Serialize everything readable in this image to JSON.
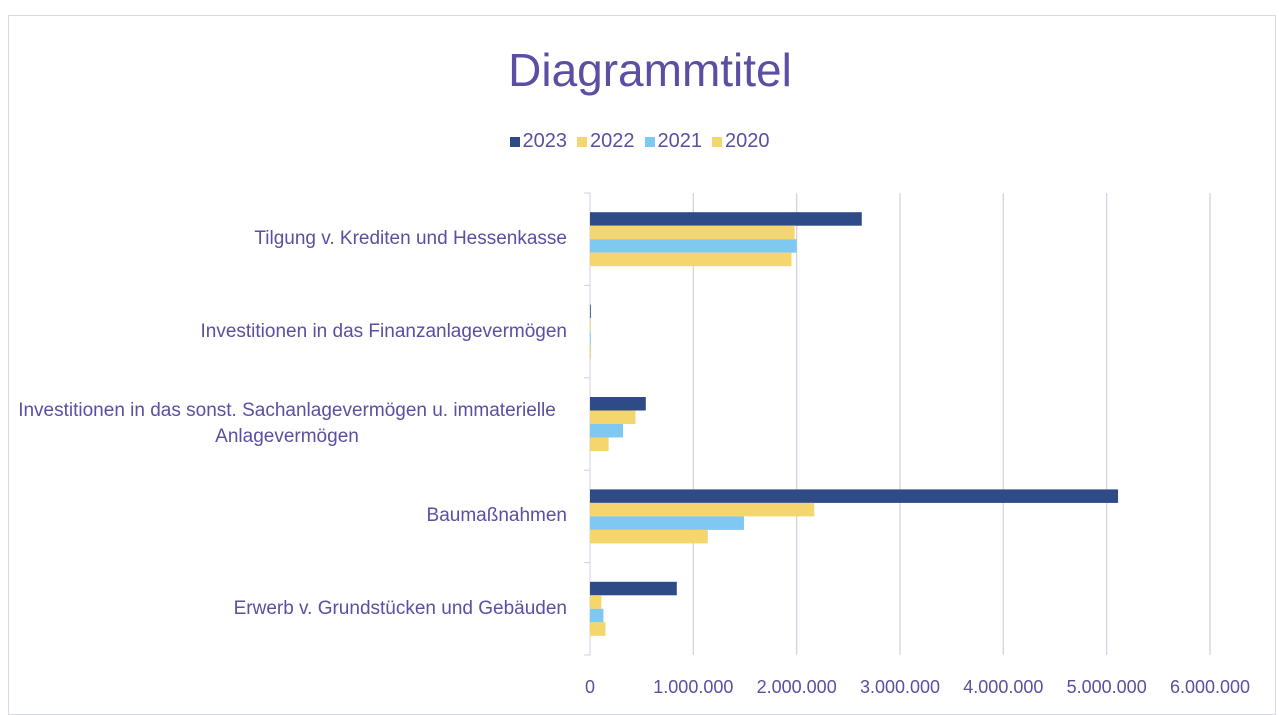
{
  "chart_data": {
    "type": "hbar",
    "title": "Diagrammtitel",
    "categories": [
      "Tilgung v. Krediten und Hessenkasse",
      "Investitionen in das Finanzanlagevermögen",
      "Investitionen in das sonst. Sachanlagevermögen u. immaterielle Anlagevermögen",
      "Baumaßnahmen",
      "Erwerb v. Grundstücken und Gebäuden"
    ],
    "series": [
      {
        "name": "2023",
        "color": "#2e4a87",
        "values": [
          2630000,
          5000,
          540000,
          5110000,
          840000
        ]
      },
      {
        "name": "2022",
        "color": "#f5d56e",
        "values": [
          1980000,
          0,
          440000,
          2170000,
          110000
        ]
      },
      {
        "name": "2021",
        "color": "#7fc8f2",
        "values": [
          2000000,
          0,
          320000,
          1490000,
          130000
        ]
      },
      {
        "name": "2020",
        "color": "#f5d56e",
        "values": [
          1950000,
          10000,
          180000,
          1140000,
          150000
        ]
      }
    ],
    "xlim": [
      0,
      6000000
    ],
    "xticks": [
      0,
      {
        "value": 1000000,
        "label": "1.000.000"
      },
      {
        "value": 2000000,
        "label": "2.000.000"
      },
      {
        "value": 3000000,
        "label": "3.000.000"
      },
      {
        "value": 4000000,
        "label": "4.000.000"
      },
      {
        "value": 5000000,
        "label": "5.000.000"
      },
      {
        "value": 6000000,
        "label": "6.000.000"
      }
    ],
    "grid": true,
    "legend": "top"
  }
}
